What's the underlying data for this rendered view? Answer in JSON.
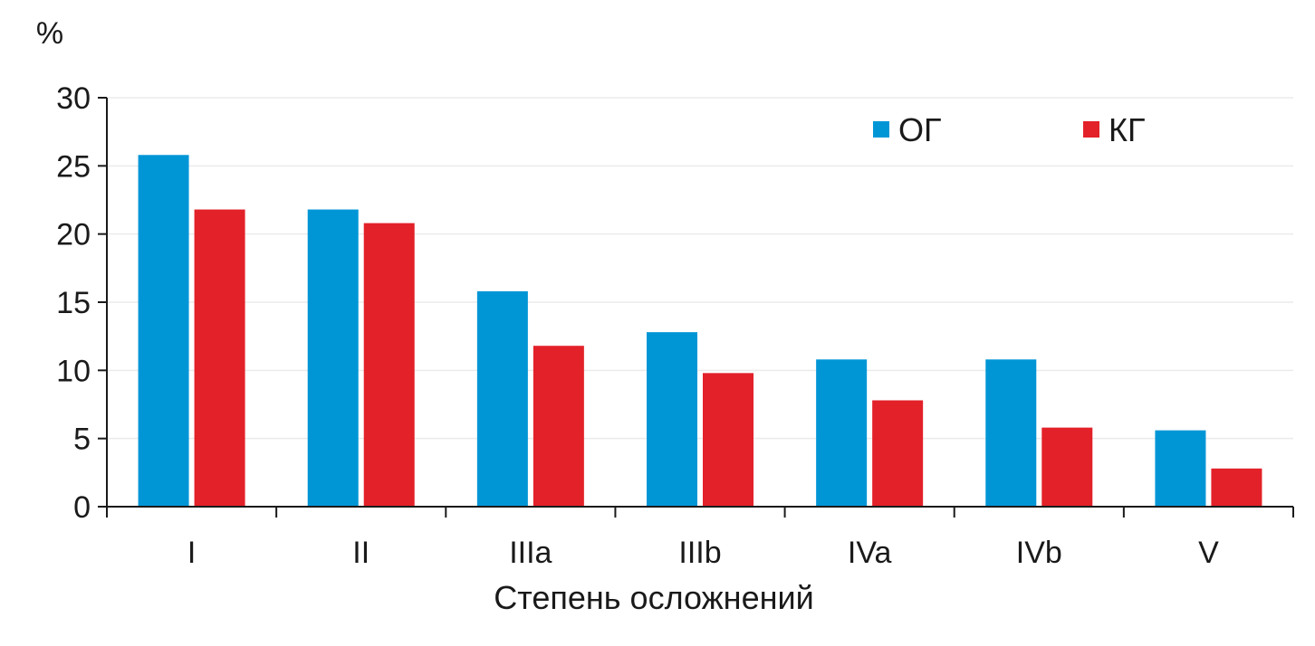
{
  "chart_data": {
    "type": "bar",
    "title": "",
    "ylabel": "%",
    "xlabel": "Степень осложнений",
    "categories": [
      "I",
      "II",
      "IIIa",
      "IIIb",
      "IVa",
      "IVb",
      "V"
    ],
    "series": [
      {
        "name": "ОГ",
        "color": "#0096d6",
        "values": [
          25.8,
          21.8,
          15.8,
          12.8,
          10.8,
          10.8,
          5.6
        ]
      },
      {
        "name": "КГ",
        "color": "#e32129",
        "values": [
          21.8,
          20.8,
          11.8,
          9.8,
          7.8,
          5.8,
          2.8
        ]
      }
    ],
    "ylim": [
      0,
      30
    ],
    "yticks": [
      0,
      5,
      10,
      15,
      20,
      25,
      30
    ],
    "ytick_labels": [
      "0",
      "5",
      "10",
      "15",
      "20",
      "25",
      "30"
    ],
    "grid": true,
    "legend_position": "top-right"
  }
}
